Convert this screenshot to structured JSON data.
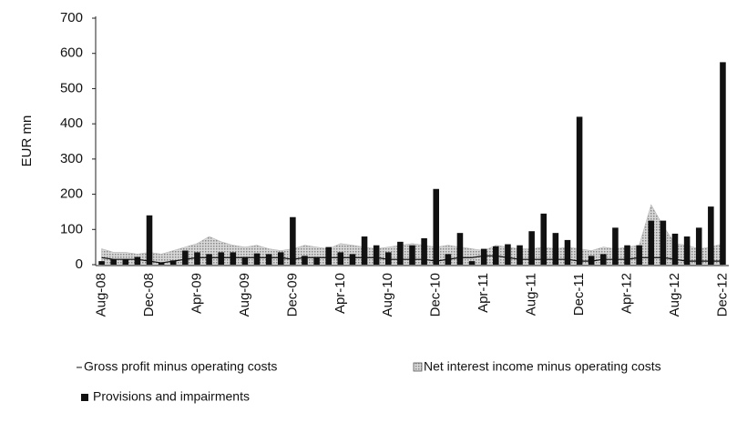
{
  "chart_data": {
    "type": "bar",
    "y_label": "EUR mn",
    "categories": [
      "Aug-08",
      null,
      null,
      null,
      "Dec-08",
      null,
      null,
      null,
      "Apr-09",
      null,
      null,
      null,
      "Aug-09",
      null,
      null,
      null,
      "Dec-09",
      null,
      null,
      null,
      "Apr-10",
      null,
      null,
      null,
      "Aug-10",
      null,
      null,
      null,
      "Dec-10",
      null,
      null,
      null,
      "Apr-11",
      null,
      null,
      null,
      "Aug-11",
      null,
      null,
      null,
      "Dec-11",
      null,
      null,
      null,
      "Apr-12",
      null,
      null,
      null,
      "Aug-12",
      null,
      null,
      null,
      "Dec-12"
    ],
    "series": [
      {
        "name": "Gross profit minus operating costs",
        "type": "line",
        "color": "#111111",
        "values": [
          20,
          15,
          15,
          15,
          10,
          5,
          10,
          15,
          20,
          20,
          20,
          20,
          20,
          20,
          20,
          20,
          15,
          20,
          20,
          20,
          20,
          20,
          20,
          20,
          15,
          15,
          15,
          15,
          10,
          15,
          20,
          20,
          25,
          25,
          20,
          15,
          15,
          15,
          15,
          15,
          10,
          10,
          15,
          15,
          15,
          20,
          20,
          20,
          15,
          10,
          10,
          10,
          10
        ]
      },
      {
        "name": "Net interest income minus operating costs",
        "type": "area",
        "color": "#b5b5b5",
        "values": [
          45,
          35,
          35,
          30,
          35,
          30,
          40,
          50,
          60,
          80,
          65,
          55,
          50,
          55,
          45,
          40,
          45,
          55,
          50,
          45,
          60,
          55,
          50,
          45,
          50,
          55,
          60,
          55,
          50,
          55,
          50,
          45,
          40,
          55,
          50,
          45,
          45,
          50,
          45,
          50,
          45,
          40,
          50,
          45,
          50,
          55,
          170,
          110,
          60,
          55,
          45,
          50,
          60
        ]
      },
      {
        "name": "Provisions and impairments",
        "type": "bar",
        "color": "#111111",
        "values": [
          10,
          15,
          15,
          22,
          140,
          5,
          12,
          40,
          35,
          30,
          35,
          35,
          22,
          32,
          30,
          35,
          135,
          25,
          22,
          50,
          35,
          30,
          80,
          55,
          35,
          65,
          55,
          75,
          215,
          30,
          90,
          10,
          45,
          52,
          58,
          55,
          95,
          145,
          90,
          70,
          420,
          25,
          30,
          105,
          55,
          55,
          125,
          125,
          88,
          80,
          105,
          165,
          575
        ]
      }
    ],
    "ylim": [
      0,
      700
    ],
    "yticks": [
      0,
      100,
      200,
      300,
      400,
      500,
      600,
      700
    ]
  }
}
